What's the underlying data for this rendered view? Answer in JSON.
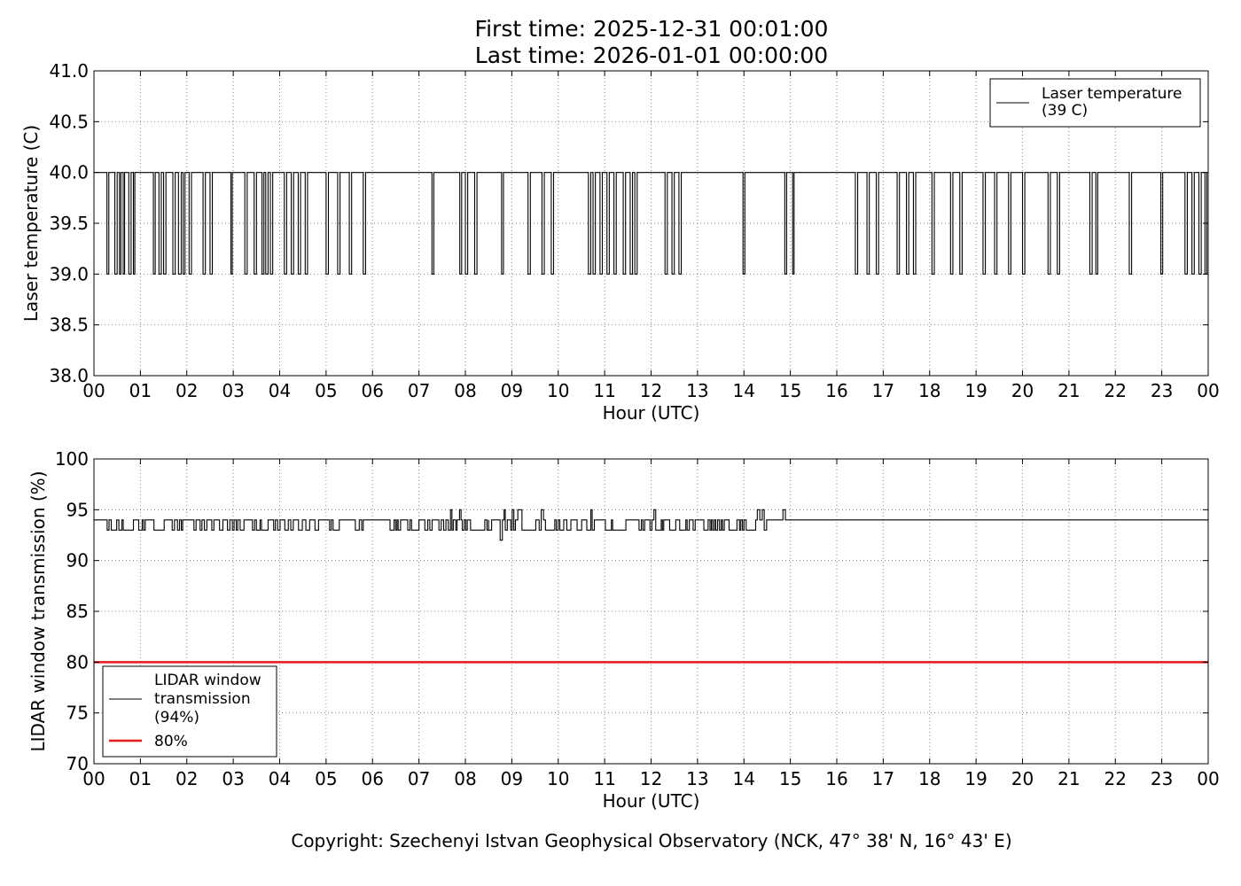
{
  "header": {
    "first_time": "First time: 2025-12-31 00:01:00",
    "last_time": "Last time: 2026-01-01 00:00:00"
  },
  "footer": {
    "copyright": "Copyright: Szechenyi Istvan Geophysical Observatory (NCK, 47° 38' N, 16° 43' E)"
  },
  "colors": {
    "series": "#000000",
    "threshold": "#e41a1c",
    "grid": "#888888"
  },
  "chart_data": [
    {
      "type": "line",
      "xlabel": "Hour (UTC)",
      "ylabel": "Laser temperature (C)",
      "xlim": [
        0,
        24
      ],
      "ylim": [
        38.0,
        41.0
      ],
      "x_ticks": [
        0,
        1,
        2,
        3,
        4,
        5,
        6,
        7,
        8,
        9,
        10,
        11,
        12,
        13,
        14,
        15,
        16,
        17,
        18,
        19,
        20,
        21,
        22,
        23,
        24
      ],
      "x_tick_labels": [
        "00",
        "01",
        "02",
        "03",
        "04",
        "05",
        "06",
        "07",
        "08",
        "09",
        "10",
        "11",
        "12",
        "13",
        "14",
        "15",
        "16",
        "17",
        "18",
        "19",
        "20",
        "21",
        "22",
        "23",
        "00"
      ],
      "y_ticks": [
        38.0,
        38.5,
        39.0,
        39.5,
        40.0,
        40.5,
        41.0
      ],
      "y_tick_labels": [
        "38.0",
        "38.5",
        "39.0",
        "39.5",
        "40.0",
        "40.5",
        "41.0"
      ],
      "grid": true,
      "legend_position": "top-right",
      "baseline": 40.0,
      "series": [
        {
          "name": "Laser temperature\n(39 C)",
          "color": "#000000",
          "baseline_value": 40.0,
          "drop_value": 39.0,
          "drop_intervals_hours": [
            [
              0.28,
              0.32
            ],
            [
              0.45,
              0.5
            ],
            [
              0.55,
              0.58
            ],
            [
              0.63,
              0.66
            ],
            [
              0.75,
              0.8
            ],
            [
              0.85,
              0.88
            ],
            [
              1.28,
              1.32
            ],
            [
              1.4,
              1.45
            ],
            [
              1.5,
              1.55
            ],
            [
              1.7,
              1.75
            ],
            [
              1.82,
              1.88
            ],
            [
              1.92,
              1.96
            ],
            [
              2.05,
              2.1
            ],
            [
              2.35,
              2.4
            ],
            [
              2.5,
              2.55
            ],
            [
              2.95,
              2.98
            ],
            [
              3.25,
              3.3
            ],
            [
              3.45,
              3.5
            ],
            [
              3.62,
              3.66
            ],
            [
              3.7,
              3.75
            ],
            [
              3.8,
              3.85
            ],
            [
              4.1,
              4.15
            ],
            [
              4.25,
              4.3
            ],
            [
              4.4,
              4.45
            ],
            [
              4.55,
              4.6
            ],
            [
              5.0,
              5.05
            ],
            [
              5.25,
              5.3
            ],
            [
              5.5,
              5.55
            ],
            [
              5.8,
              5.85
            ],
            [
              7.28,
              7.32
            ],
            [
              7.88,
              7.92
            ],
            [
              8.0,
              8.05
            ],
            [
              8.2,
              8.25
            ],
            [
              8.78,
              8.82
            ],
            [
              9.35,
              9.4
            ],
            [
              9.65,
              9.7
            ],
            [
              9.85,
              9.9
            ],
            [
              10.65,
              10.7
            ],
            [
              10.75,
              10.8
            ],
            [
              10.9,
              10.95
            ],
            [
              11.05,
              11.1
            ],
            [
              11.2,
              11.25
            ],
            [
              11.4,
              11.45
            ],
            [
              11.55,
              11.6
            ],
            [
              11.65,
              11.7
            ],
            [
              12.3,
              12.35
            ],
            [
              12.45,
              12.5
            ],
            [
              12.6,
              12.65
            ],
            [
              13.98,
              14.02
            ],
            [
              14.88,
              14.92
            ],
            [
              15.05,
              15.08
            ],
            [
              16.4,
              16.45
            ],
            [
              16.65,
              16.7
            ],
            [
              16.85,
              16.9
            ],
            [
              17.3,
              17.35
            ],
            [
              17.5,
              17.55
            ],
            [
              17.65,
              17.7
            ],
            [
              18.05,
              18.1
            ],
            [
              18.45,
              18.5
            ],
            [
              18.65,
              18.7
            ],
            [
              19.15,
              19.2
            ],
            [
              19.4,
              19.45
            ],
            [
              19.7,
              19.75
            ],
            [
              20.0,
              20.05
            ],
            [
              20.55,
              20.6
            ],
            [
              20.75,
              20.8
            ],
            [
              21.45,
              21.5
            ],
            [
              21.58,
              21.62
            ],
            [
              22.3,
              22.35
            ],
            [
              22.98,
              23.02
            ],
            [
              23.5,
              23.55
            ],
            [
              23.65,
              23.7
            ],
            [
              23.8,
              23.85
            ],
            [
              23.93,
              23.97
            ]
          ]
        }
      ]
    },
    {
      "type": "line",
      "xlabel": "Hour (UTC)",
      "ylabel": "LIDAR window transmission (%)",
      "xlim": [
        0,
        24
      ],
      "ylim": [
        70,
        100
      ],
      "x_ticks": [
        0,
        1,
        2,
        3,
        4,
        5,
        6,
        7,
        8,
        9,
        10,
        11,
        12,
        13,
        14,
        15,
        16,
        17,
        18,
        19,
        20,
        21,
        22,
        23,
        24
      ],
      "x_tick_labels": [
        "00",
        "01",
        "02",
        "03",
        "04",
        "05",
        "06",
        "07",
        "08",
        "09",
        "10",
        "11",
        "12",
        "13",
        "14",
        "15",
        "16",
        "17",
        "18",
        "19",
        "20",
        "21",
        "22",
        "23",
        "00"
      ],
      "y_ticks": [
        70,
        75,
        80,
        85,
        90,
        95,
        100
      ],
      "y_tick_labels": [
        "70",
        "75",
        "80",
        "85",
        "90",
        "95",
        "100"
      ],
      "grid": true,
      "legend_position": "bottom-left",
      "series": [
        {
          "name": "LIDAR window\ntransmission\n(94%)",
          "color": "#000000",
          "baseline_value": 94,
          "segments": [
            {
              "start": 0.2,
              "end": 5.8,
              "low": 93,
              "high": 94
            },
            {
              "start": 6.2,
              "end": 7.0,
              "low": 93,
              "high": 94
            },
            {
              "start": 7.1,
              "end": 8.5,
              "low": 93,
              "high": 95
            },
            {
              "start": 8.5,
              "end": 10.8,
              "low": 92,
              "high": 96
            },
            {
              "start": 10.8,
              "end": 12.4,
              "low": 93,
              "high": 95
            },
            {
              "start": 12.4,
              "end": 14.5,
              "low": 92,
              "high": 96
            },
            {
              "start": 14.5,
              "end": 14.9,
              "low": 94,
              "high": 95
            }
          ]
        },
        {
          "name": "80%",
          "color": "#e41a1c",
          "constant": 80
        }
      ]
    }
  ]
}
